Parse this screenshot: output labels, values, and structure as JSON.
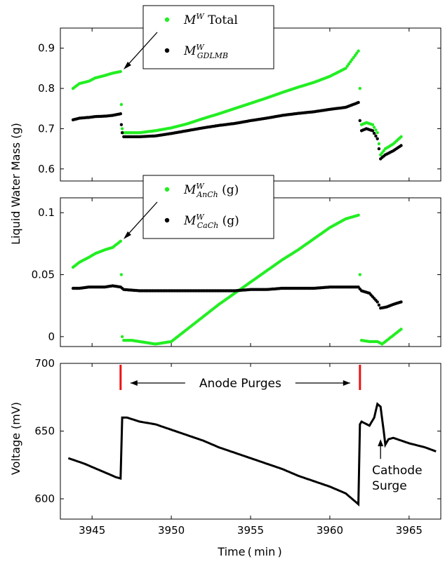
{
  "chart_data": [
    {
      "type": "scatter",
      "xlim": [
        3943,
        3967
      ],
      "ylim": [
        0.57,
        0.95
      ],
      "yticks": [
        "0.6",
        "0.7",
        "0.8",
        "0.9"
      ],
      "ytick_values": [
        0.6,
        0.7,
        0.8,
        0.9
      ],
      "ylabel": "Liquid Water Mass (g)",
      "legend_position": "top-center",
      "series": [
        {
          "name": "M^W Total",
          "legend_main": "M",
          "legend_sup": "W",
          "legend_sub": "",
          "legend_suffix": " Total",
          "color": "#22ee22",
          "x": [
            3943.8,
            3944.2,
            3944.8,
            3945.2,
            3945.8,
            3946.3,
            3946.8,
            3946.85,
            3946.9,
            3947.0,
            3947.5,
            3948.0,
            3949.0,
            3950.0,
            3951.0,
            3952.0,
            3953.0,
            3954.0,
            3955.0,
            3956.0,
            3957.0,
            3958.0,
            3959.0,
            3960.0,
            3961.0,
            3961.8,
            3961.9,
            3962.0,
            3962.3,
            3962.7,
            3963.0,
            3963.2,
            3963.5,
            3964.0,
            3964.5
          ],
          "y": [
            0.8,
            0.812,
            0.818,
            0.826,
            0.832,
            0.838,
            0.842,
            0.76,
            0.7,
            0.69,
            0.69,
            0.69,
            0.695,
            0.702,
            0.712,
            0.725,
            0.737,
            0.75,
            0.763,
            0.776,
            0.79,
            0.803,
            0.815,
            0.83,
            0.85,
            0.893,
            0.8,
            0.71,
            0.715,
            0.71,
            0.69,
            0.635,
            0.65,
            0.662,
            0.68
          ]
        },
        {
          "name": "M_GDLMB^W",
          "legend_main": "M",
          "legend_sup": "W",
          "legend_sub": "GDLMB",
          "legend_suffix": "",
          "color": "#000000",
          "x": [
            3943.8,
            3944.2,
            3944.8,
            3945.2,
            3945.8,
            3946.3,
            3946.8,
            3946.85,
            3946.9,
            3947.0,
            3947.5,
            3948.0,
            3949.0,
            3950.0,
            3951.0,
            3952.0,
            3953.0,
            3954.0,
            3955.0,
            3956.0,
            3957.0,
            3958.0,
            3959.0,
            3960.0,
            3961.0,
            3961.8,
            3961.9,
            3962.0,
            3962.3,
            3962.7,
            3963.0,
            3963.2,
            3963.5,
            3964.0,
            3964.5
          ],
          "y": [
            0.722,
            0.726,
            0.728,
            0.73,
            0.731,
            0.733,
            0.737,
            0.71,
            0.69,
            0.68,
            0.68,
            0.68,
            0.682,
            0.688,
            0.695,
            0.702,
            0.708,
            0.713,
            0.72,
            0.726,
            0.733,
            0.738,
            0.742,
            0.748,
            0.753,
            0.765,
            0.72,
            0.695,
            0.7,
            0.695,
            0.675,
            0.625,
            0.635,
            0.645,
            0.658
          ]
        }
      ]
    },
    {
      "type": "scatter",
      "xlim": [
        3943,
        3967
      ],
      "ylim": [
        -0.008,
        0.112
      ],
      "yticks": [
        "0",
        "0.05",
        "0.1"
      ],
      "ytick_values": [
        0,
        0.05,
        0.1
      ],
      "legend_position": "top-center",
      "series": [
        {
          "name": "M_AnCh^W (g)",
          "legend_main": "M",
          "legend_sup": "W",
          "legend_sub": "AnCh",
          "legend_suffix": " (g)",
          "color": "#22ee22",
          "x": [
            3943.8,
            3944.2,
            3944.8,
            3945.2,
            3945.8,
            3946.3,
            3946.8,
            3946.85,
            3946.9,
            3947.0,
            3947.5,
            3948.0,
            3949.0,
            3950.0,
            3951.0,
            3952.0,
            3953.0,
            3954.0,
            3955.0,
            3956.0,
            3957.0,
            3958.0,
            3959.0,
            3960.0,
            3961.0,
            3961.8,
            3961.9,
            3962.0,
            3962.5,
            3963.0,
            3963.3,
            3963.8,
            3964.5
          ],
          "y": [
            0.056,
            0.06,
            0.064,
            0.067,
            0.07,
            0.072,
            0.077,
            0.05,
            0.0,
            -0.003,
            -0.003,
            -0.004,
            -0.006,
            -0.004,
            0.006,
            0.016,
            0.026,
            0.035,
            0.044,
            0.053,
            0.062,
            0.07,
            0.079,
            0.088,
            0.095,
            0.098,
            0.05,
            -0.003,
            -0.004,
            -0.004,
            -0.006,
            -0.001,
            0.006
          ]
        },
        {
          "name": "M_CaCh^W (g)",
          "legend_main": "M",
          "legend_sup": "W",
          "legend_sub": "CaCh",
          "legend_suffix": " (g)",
          "color": "#000000",
          "x": [
            3943.8,
            3944.2,
            3944.8,
            3945.2,
            3945.8,
            3946.3,
            3946.8,
            3947.0,
            3948.0,
            3949.0,
            3950.0,
            3951.0,
            3952.0,
            3953.0,
            3954.0,
            3955.0,
            3956.0,
            3957.0,
            3958.0,
            3959.0,
            3960.0,
            3961.0,
            3961.8,
            3962.0,
            3962.5,
            3963.0,
            3963.2,
            3963.6,
            3964.0,
            3964.5
          ],
          "y": [
            0.039,
            0.039,
            0.04,
            0.04,
            0.04,
            0.041,
            0.04,
            0.038,
            0.037,
            0.037,
            0.037,
            0.037,
            0.037,
            0.037,
            0.037,
            0.038,
            0.038,
            0.039,
            0.039,
            0.039,
            0.04,
            0.04,
            0.04,
            0.037,
            0.035,
            0.028,
            0.023,
            0.024,
            0.026,
            0.028
          ]
        }
      ]
    },
    {
      "type": "line",
      "xlim": [
        3943,
        3967
      ],
      "ylim": [
        585,
        700
      ],
      "xticks": [
        "3945",
        "3950",
        "3955",
        "3960",
        "3965"
      ],
      "xtick_values": [
        3945,
        3950,
        3955,
        3960,
        3965
      ],
      "yticks": [
        "600",
        "650",
        "700"
      ],
      "ytick_values": [
        600,
        650,
        700
      ],
      "ylabel": "Voltage (mV)",
      "xlabel": "Time ( min )",
      "series": [
        {
          "color": "#000000",
          "x": [
            3943.5,
            3944.5,
            3945.5,
            3946.5,
            3946.8,
            3946.9,
            3947.2,
            3948.0,
            3949.0,
            3950.0,
            3951.0,
            3952.0,
            3953.0,
            3954.0,
            3955.0,
            3956.0,
            3957.0,
            3958.0,
            3959.0,
            3960.0,
            3961.0,
            3961.8,
            3961.9,
            3962.0,
            3962.5,
            3962.8,
            3963.0,
            3963.2,
            3963.4,
            3963.5,
            3963.7,
            3964.0,
            3965.0,
            3966.0,
            3966.7
          ],
          "y": [
            630,
            626,
            621,
            616,
            615,
            660,
            660,
            657,
            655,
            651,
            647,
            643,
            638,
            634,
            630,
            626,
            622,
            617,
            613,
            609,
            604,
            596,
            655,
            657,
            654,
            660,
            670,
            668,
            650,
            640,
            644,
            645,
            641,
            638,
            635
          ]
        }
      ],
      "purge_markers_x": [
        3946.8,
        3961.9
      ],
      "annotations": {
        "purges": "Anode Purges",
        "surge_line1": "Cathode",
        "surge_line2": "Surge"
      }
    }
  ]
}
